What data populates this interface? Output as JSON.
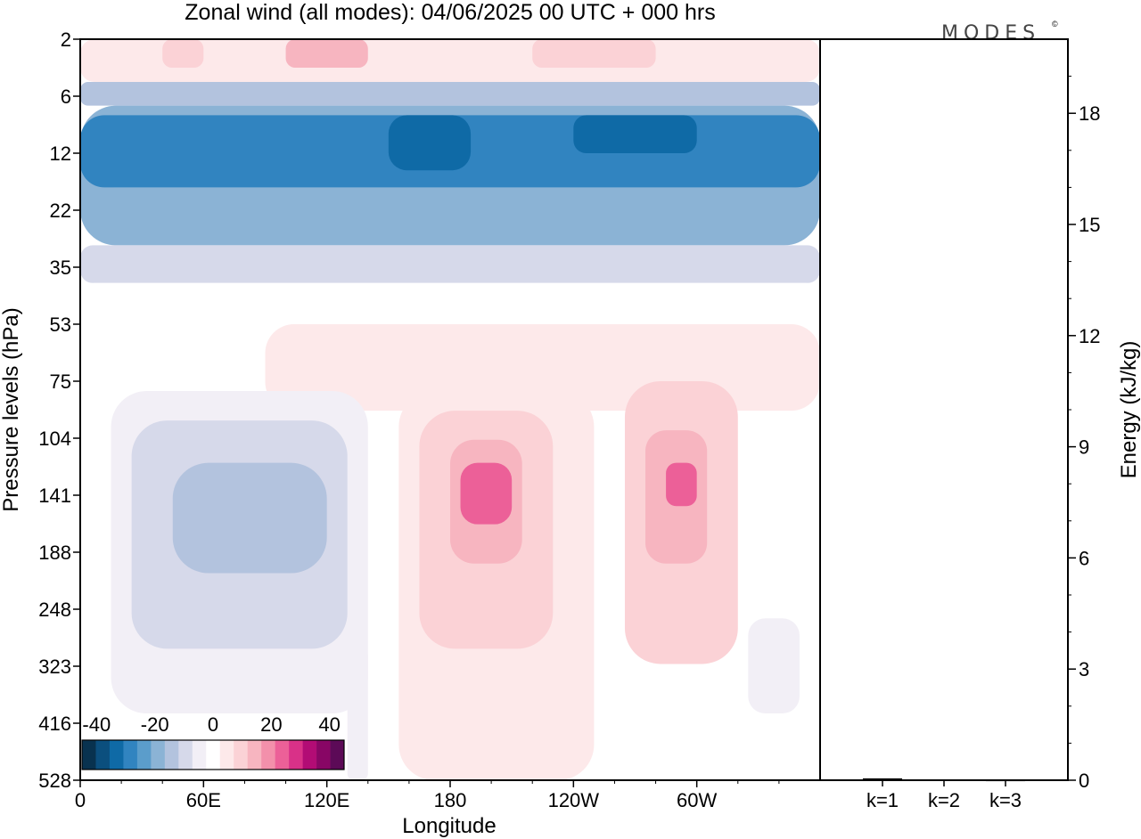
{
  "title": "Zonal wind (all modes):  04/06/2025  00 UTC  + 000 hrs",
  "brand": "MODES",
  "brand_mark": "©",
  "colors": {
    "scale": [
      "#08324f",
      "#0b4f7e",
      "#0f6aa6",
      "#3184c0",
      "#5b9dcb",
      "#8bb3d5",
      "#b3c3de",
      "#d6d9ea",
      "#f2eff6",
      "#ffffff",
      "#fde9ea",
      "#fbd2d6",
      "#f7b5c0",
      "#f390ab",
      "#ec6098",
      "#d93188",
      "#b20c75",
      "#880665",
      "#5c0a57"
    ],
    "frame": "#000000"
  },
  "chart_data": [
    {
      "type": "heatmap",
      "title": "Zonal wind (all modes):  04/06/2025  00 UTC  + 000 hrs",
      "xlabel": "Longitude",
      "ylabel": "Pressure levels (hPa)",
      "x_ticks": [
        "0",
        "60E",
        "120E",
        "180",
        "120W",
        "60W"
      ],
      "y_ticks": [
        "2",
        "6",
        "12",
        "22",
        "35",
        "53",
        "75",
        "104",
        "141",
        "188",
        "248",
        "323",
        "416",
        "528"
      ],
      "colorbar": {
        "ticks": [
          "-40",
          "-20",
          "0",
          "20",
          "40"
        ],
        "range": [
          -45,
          45
        ],
        "step": 5
      },
      "regions": [
        {
          "lon": [
            0,
            360
          ],
          "levels": [
            "2",
            "5"
          ],
          "value": 8
        },
        {
          "lon": [
            40,
            60
          ],
          "levels": [
            "2",
            "4"
          ],
          "value": 14
        },
        {
          "lon": [
            100,
            140
          ],
          "levels": [
            "2",
            "4"
          ],
          "value": 16
        },
        {
          "lon": [
            220,
            280
          ],
          "levels": [
            "2",
            "4"
          ],
          "value": 14
        },
        {
          "lon": [
            0,
            360
          ],
          "levels": [
            "5",
            "7"
          ],
          "value": -12
        },
        {
          "lon": [
            0,
            360
          ],
          "levels": [
            "7",
            "30"
          ],
          "value": -20
        },
        {
          "lon": [
            0,
            360
          ],
          "levels": [
            "8",
            "18"
          ],
          "value": -26
        },
        {
          "lon": [
            150,
            190
          ],
          "levels": [
            "8",
            "15"
          ],
          "value": -33
        },
        {
          "lon": [
            240,
            300
          ],
          "levels": [
            "8",
            "12"
          ],
          "value": -33
        },
        {
          "lon": [
            0,
            360
          ],
          "levels": [
            "30",
            "40"
          ],
          "value": -9
        },
        {
          "lon": [
            0,
            360
          ],
          "levels": [
            "40",
            "53"
          ],
          "value": 2
        },
        {
          "lon": [
            90,
            360
          ],
          "levels": [
            "53",
            "90"
          ],
          "value": 7
        },
        {
          "lon": [
            15,
            140
          ],
          "levels": [
            "80",
            "400"
          ],
          "value": -4
        },
        {
          "lon": [
            25,
            130
          ],
          "levels": [
            "95",
            "300"
          ],
          "value": -8
        },
        {
          "lon": [
            45,
            120
          ],
          "levels": [
            "120",
            "210"
          ],
          "value": -14
        },
        {
          "lon": [
            155,
            250
          ],
          "levels": [
            "80",
            "528"
          ],
          "value": 6
        },
        {
          "lon": [
            165,
            230
          ],
          "levels": [
            "90",
            "300"
          ],
          "value": 12
        },
        {
          "lon": [
            180,
            215
          ],
          "levels": [
            "105",
            "200"
          ],
          "value": 18
        },
        {
          "lon": [
            185,
            210
          ],
          "levels": [
            "120",
            "165"
          ],
          "value": 26
        },
        {
          "lon": [
            265,
            320
          ],
          "levels": [
            "75",
            "320"
          ],
          "value": 10
        },
        {
          "lon": [
            275,
            305
          ],
          "levels": [
            "100",
            "200"
          ],
          "value": 17
        },
        {
          "lon": [
            285,
            300
          ],
          "levels": [
            "120",
            "150"
          ],
          "value": 27
        },
        {
          "lon": [
            325,
            350
          ],
          "levels": [
            "260",
            "400"
          ],
          "value": -4
        },
        {
          "lon": [
            130,
            140
          ],
          "levels": [
            "300",
            "528"
          ],
          "value": -3
        }
      ]
    },
    {
      "type": "bar",
      "categories": [
        "k=1",
        "k=2",
        "k=3"
      ],
      "values": [
        0.05,
        0.02,
        0.01
      ],
      "ylabel": "Energy (kJ/kg)",
      "y_ticks": [
        "0",
        "3",
        "6",
        "9",
        "12",
        "15",
        "18"
      ],
      "ylim": [
        0,
        20
      ]
    }
  ]
}
